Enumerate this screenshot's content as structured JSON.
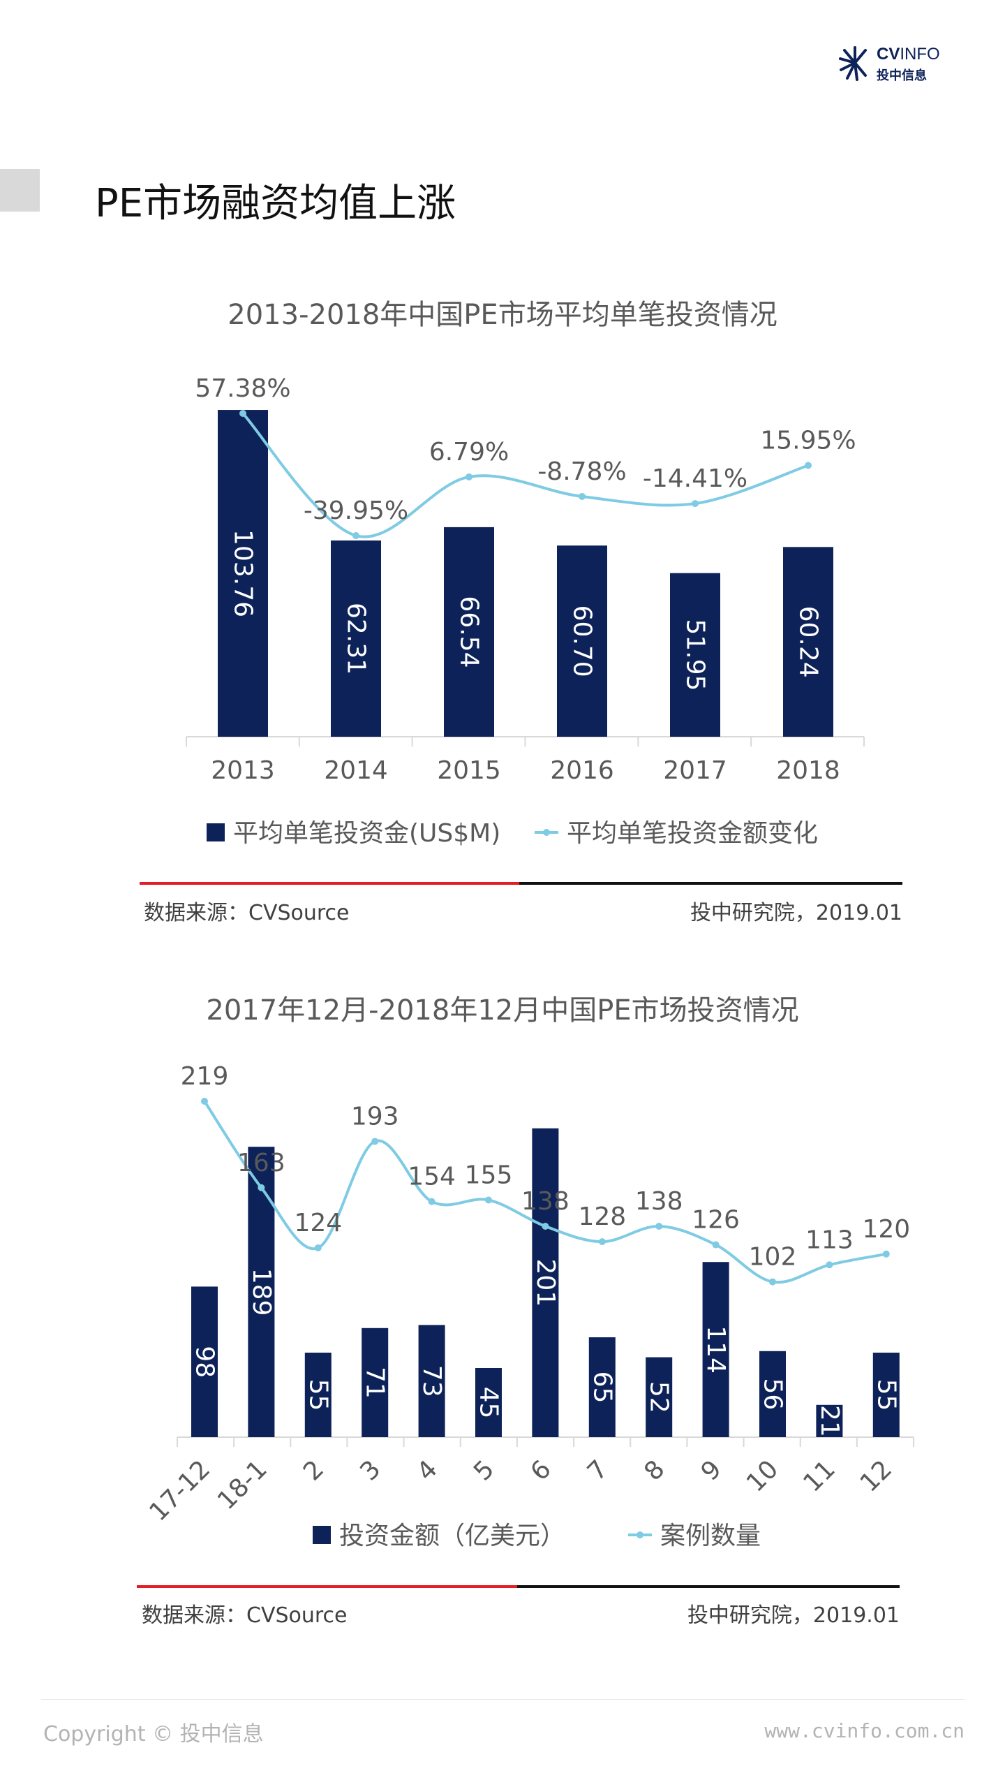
{
  "logo": {
    "brand_bold": "CV",
    "brand_light": "INFO",
    "brand_cn": "投中信息"
  },
  "page_title": "PE市场融资均值上涨",
  "colors": {
    "bar": "#0d2258",
    "line": "#7ecbe3",
    "rule_red": "#e31e24",
    "rule_black": "#111111"
  },
  "chart_data": [
    {
      "type": "bar+line",
      "title": "2013-2018年中国PE市场平均单笔投资情况",
      "categories": [
        "2013",
        "2014",
        "2015",
        "2016",
        "2017",
        "2018"
      ],
      "series": [
        {
          "name": "平均单笔投资金(US$M)",
          "type": "bar",
          "values": [
            103.76,
            62.31,
            66.54,
            60.7,
            51.95,
            60.24
          ],
          "labels": [
            "103.76",
            "62.31",
            "66.54",
            "60.70",
            "51.95",
            "60.24"
          ]
        },
        {
          "name": "平均单笔投资金额变化",
          "type": "line",
          "values": [
            57.38,
            -39.95,
            6.79,
            -8.78,
            -14.41,
            15.95
          ],
          "labels": [
            "57.38%",
            "-39.95%",
            "6.79%",
            "-8.78%",
            "-14.41%",
            "15.95%"
          ]
        }
      ],
      "legend": "bottom",
      "source": "数据来源：CVSource",
      "credit": "投中研究院，2019.01"
    },
    {
      "type": "bar+line",
      "title": "2017年12月-2018年12月中国PE市场投资情况",
      "categories": [
        "17-12",
        "18-1",
        "2",
        "3",
        "4",
        "5",
        "6",
        "7",
        "8",
        "9",
        "10",
        "11",
        "12"
      ],
      "series": [
        {
          "name": "投资金额（亿美元）",
          "type": "bar",
          "values": [
            98,
            189,
            55,
            71,
            73,
            45,
            201,
            65,
            52,
            114,
            56,
            21,
            55
          ],
          "labels": [
            "98",
            "189",
            "55",
            "71",
            "73",
            "45",
            "201",
            "65",
            "52",
            "114",
            "56",
            "21",
            "55"
          ]
        },
        {
          "name": "案例数量",
          "type": "line",
          "values": [
            219,
            163,
            124,
            193,
            154,
            155,
            138,
            128,
            138,
            126,
            102,
            113,
            120
          ],
          "labels": [
            "219",
            "163",
            "124",
            "193",
            "154",
            "155",
            "138",
            "128",
            "138",
            "126",
            "102",
            "113",
            "120"
          ]
        }
      ],
      "legend": "bottom",
      "source": "数据来源：CVSource",
      "credit": "投中研究院，2019.01"
    }
  ],
  "footer": {
    "copyright": "Copyright © 投中信息",
    "website": "www.cvinfo.com.cn"
  }
}
